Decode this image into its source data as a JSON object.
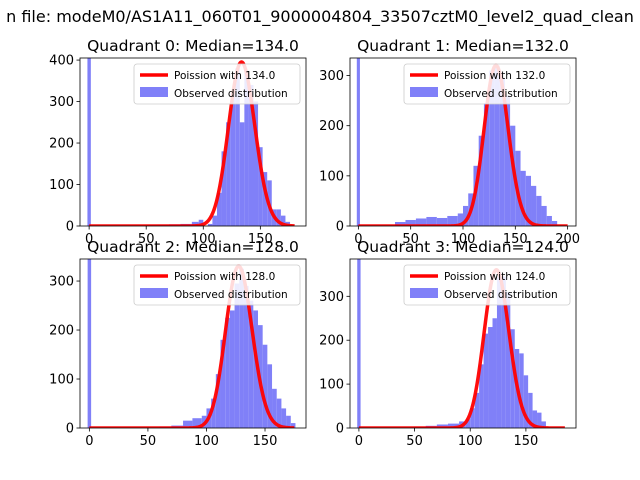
{
  "figure": {
    "suptitle": "n file: modeM0/AS1A11_060T01_9000004804_33507cztM0_level2_quad_clean"
  },
  "colors": {
    "hist": "#8080f8",
    "poisson": "#ff0000",
    "axes": "#000000",
    "background": "#ffffff"
  },
  "chart_data": [
    {
      "type": "bar",
      "id": "q0",
      "title": "Quadrant 0: Median=134.0",
      "xlim": [
        -8,
        190
      ],
      "ylim": [
        0,
        405
      ],
      "xticks": [
        0,
        50,
        100,
        150
      ],
      "yticks": [
        0,
        100,
        200,
        300,
        400
      ],
      "legend": {
        "position": "top-right",
        "poisson_label": "Poission with 134.0",
        "hist_label": "Observed distribution"
      },
      "zero_bin_value": 405,
      "bin_edges": [
        104,
        108,
        112,
        116,
        120,
        124,
        128,
        132,
        136,
        140,
        144,
        148,
        152,
        156,
        160,
        164,
        168,
        172,
        176
      ],
      "values": [
        5,
        25,
        80,
        180,
        250,
        320,
        380,
        250,
        370,
        340,
        300,
        190,
        130,
        110,
        40,
        40,
        25,
        10
      ],
      "low_tail_edges": [
        50,
        60,
        70,
        80,
        90,
        96,
        100
      ],
      "low_tail_values": [
        2,
        3,
        4,
        5,
        10,
        15
      ],
      "poisson": {
        "mean": 134.0,
        "peak": 395,
        "x_range": [
          0,
          180
        ]
      }
    },
    {
      "type": "bar",
      "id": "q1",
      "title": "Quadrant 1: Median=132.0",
      "xlim": [
        -8,
        208
      ],
      "ylim": [
        0,
        335
      ],
      "xticks": [
        0,
        50,
        100,
        150,
        200
      ],
      "yticks": [
        0,
        100,
        200,
        300
      ],
      "legend": {
        "position": "top-right",
        "poisson_label": "Poission with 132.0",
        "hist_label": "Observed distribution"
      },
      "zero_bin_value": 335,
      "bin_edges": [
        100,
        105,
        110,
        115,
        120,
        125,
        130,
        135,
        140,
        145,
        150,
        155,
        160,
        165,
        170,
        175,
        180,
        185,
        190
      ],
      "values": [
        40,
        65,
        120,
        180,
        245,
        310,
        320,
        295,
        260,
        200,
        150,
        110,
        100,
        80,
        60,
        40,
        20,
        10
      ],
      "low_tail_edges": [
        35,
        45,
        55,
        65,
        75,
        85,
        95,
        100
      ],
      "low_tail_values": [
        8,
        12,
        15,
        18,
        16,
        20,
        25
      ],
      "poisson": {
        "mean": 132.0,
        "peak": 320,
        "x_range": [
          0,
          200
        ]
      }
    },
    {
      "type": "bar",
      "id": "q2",
      "title": "Quadrant 2: Median=128.0",
      "xlim": [
        -8,
        185
      ],
      "ylim": [
        0,
        345
      ],
      "xticks": [
        0,
        50,
        100,
        150
      ],
      "yticks": [
        0,
        100,
        200,
        300
      ],
      "legend": {
        "position": "top-right",
        "poisson_label": "Poission with 128.0",
        "hist_label": "Observed distribution"
      },
      "zero_bin_value": 345,
      "bin_edges": [
        96,
        100,
        104,
        108,
        112,
        116,
        120,
        124,
        128,
        132,
        136,
        140,
        144,
        148,
        152,
        156,
        160,
        164,
        168,
        172,
        176
      ],
      "values": [
        25,
        40,
        60,
        110,
        180,
        225,
        240,
        295,
        325,
        290,
        260,
        240,
        210,
        170,
        130,
        80,
        60,
        40,
        25,
        10
      ],
      "low_tail_edges": [
        60,
        70,
        80,
        88,
        96
      ],
      "low_tail_values": [
        3,
        5,
        15,
        20
      ],
      "poisson": {
        "mean": 128.0,
        "peak": 330,
        "x_range": [
          0,
          175
        ]
      }
    },
    {
      "type": "bar",
      "id": "q3",
      "title": "Quadrant 3: Median=124.0",
      "xlim": [
        -8,
        195
      ],
      "ylim": [
        0,
        385
      ],
      "xticks": [
        0,
        50,
        100,
        150
      ],
      "yticks": [
        0,
        100,
        200,
        300
      ],
      "legend": {
        "position": "top-right",
        "poisson_label": "Poission with 124.0",
        "hist_label": "Observed distribution"
      },
      "zero_bin_value": 385,
      "bin_edges": [
        96,
        100,
        104,
        108,
        112,
        116,
        120,
        124,
        128,
        132,
        136,
        140,
        144,
        148,
        152,
        156,
        160,
        164,
        168
      ],
      "values": [
        20,
        45,
        80,
        145,
        215,
        230,
        250,
        345,
        345,
        310,
        225,
        180,
        170,
        120,
        80,
        40,
        35,
        15
      ],
      "low_tail_edges": [
        50,
        60,
        70,
        80,
        90,
        96
      ],
      "low_tail_values": [
        3,
        5,
        8,
        10,
        15
      ],
      "poisson": {
        "mean": 124.0,
        "peak": 360,
        "x_range": [
          0,
          185
        ]
      }
    }
  ]
}
